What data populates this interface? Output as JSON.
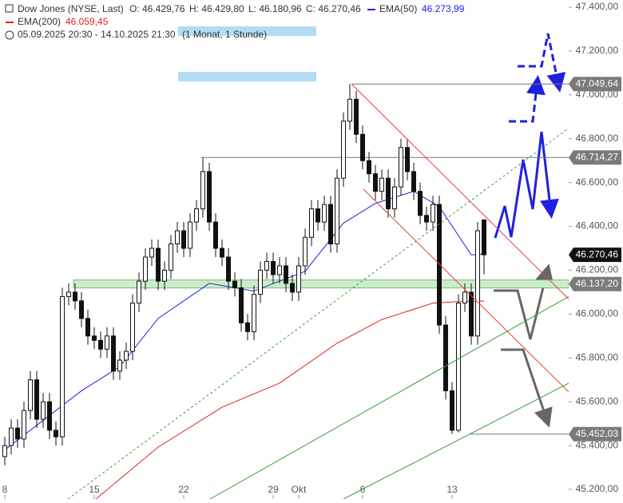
{
  "header": {
    "instrument": "Dow Jones (NYSE, Last)",
    "open": "O: 46.429,76",
    "high": "H: 46.429,80",
    "low": "L: 46.180,96",
    "close": "C: 46.270,46",
    "ema50_name": "EMA(50)",
    "ema50_value": "46.273,99",
    "ema200_name": "EMA(200)",
    "ema200_value": "46.059,45",
    "range": "05.09.2025 20:30 - 14.10.2025 21:30",
    "interval": "(1 Monat, 1 Stunde)"
  },
  "chart_data": {
    "type": "candlestick",
    "xlim": [
      -0.375,
      44.125
    ],
    "ylim": [
      45200,
      47400
    ],
    "xticks": [
      {
        "value": 0,
        "label": "8"
      },
      {
        "value": 7,
        "label": "15"
      },
      {
        "value": 14,
        "label": "22"
      },
      {
        "value": 21,
        "label": "29"
      },
      {
        "value": 23,
        "label": "Okt"
      },
      {
        "value": 28,
        "label": "6"
      },
      {
        "value": 35,
        "label": "13"
      }
    ],
    "yticks": [
      {
        "value": 45200,
        "label": "45.200,00"
      },
      {
        "value": 45400,
        "label": "45.400,00"
      },
      {
        "value": 45600,
        "label": "45.600,00"
      },
      {
        "value": 45800,
        "label": "45.800,00"
      },
      {
        "value": 46000,
        "label": "46.000,00"
      },
      {
        "value": 46200,
        "label": "46.200,00"
      },
      {
        "value": 46400,
        "label": "46.400,00"
      },
      {
        "value": 46600,
        "label": "46.600,00"
      },
      {
        "value": 46800,
        "label": "46.800,00"
      },
      {
        "value": 47000,
        "label": "47.000,00"
      },
      {
        "value": 47200,
        "label": "47.200,00"
      },
      {
        "value": 47400,
        "label": "47.400,00"
      }
    ],
    "candles": {
      "x": [
        0,
        0.5,
        1,
        1.5,
        2,
        2.5,
        3,
        3.5,
        4,
        4.5,
        5,
        5.5,
        6,
        6.5,
        7,
        7.5,
        8,
        8.5,
        9,
        9.5,
        10,
        10.5,
        11,
        11.5,
        12,
        12.5,
        13,
        13.5,
        14,
        14.5,
        15,
        15.5,
        16,
        16.5,
        17,
        17.5,
        18,
        18.5,
        19,
        19.5,
        20,
        20.5,
        21,
        21.5,
        22,
        22.5,
        23,
        23.5,
        24,
        24.5,
        25,
        25.5,
        26,
        26.5,
        27,
        27.5,
        28,
        28.5,
        29,
        29.5,
        30,
        30.5,
        31,
        31.5,
        32,
        32.5,
        33,
        33.5,
        34,
        34.5,
        35,
        35.5,
        36,
        36.5,
        37,
        37.5
      ],
      "open": [
        45350,
        45400,
        45480,
        45430,
        45560,
        45700,
        45520,
        45600,
        45470,
        45440,
        46080,
        46100,
        46060,
        45980,
        45900,
        45880,
        45840,
        45900,
        45740,
        45790,
        45830,
        46050,
        46150,
        46260,
        46300,
        46150,
        46200,
        46320,
        46380,
        46300,
        46420,
        46480,
        46650,
        46420,
        46300,
        46260,
        46150,
        46120,
        45960,
        45920,
        46090,
        46200,
        46240,
        46180,
        46220,
        46140,
        46100,
        46220,
        46350,
        46480,
        46420,
        46500,
        46320,
        46620,
        46880,
        46980,
        46820,
        46700,
        46640,
        46560,
        46620,
        46480,
        46580,
        46760,
        46650,
        46560,
        46450,
        46420,
        46500,
        45950,
        45650,
        45470,
        46050,
        46100,
        45900,
        46429.76
      ],
      "high": [
        45440,
        45520,
        45520,
        45600,
        45740,
        45740,
        45640,
        45640,
        45510,
        46120,
        46140,
        46140,
        46100,
        46020,
        45940,
        45920,
        45940,
        45940,
        45830,
        45870,
        46090,
        46190,
        46300,
        46340,
        46340,
        46240,
        46360,
        46420,
        46420,
        46460,
        46520,
        46714.27,
        46690,
        46460,
        46340,
        46300,
        46190,
        46160,
        46000,
        46130,
        46240,
        46280,
        46280,
        46260,
        46260,
        46180,
        46260,
        46390,
        46520,
        46520,
        46540,
        46540,
        46660,
        46920,
        47049.64,
        47020,
        46860,
        46740,
        46680,
        46660,
        46660,
        46620,
        46800,
        46800,
        46690,
        46600,
        46490,
        46540,
        46540,
        45990,
        45690,
        46090,
        46140,
        46140,
        46420,
        46429.8
      ],
      "low": [
        45310,
        45360,
        45390,
        45390,
        45520,
        45480,
        45480,
        45430,
        45400,
        45400,
        46040,
        46020,
        45940,
        45860,
        45840,
        45800,
        45800,
        45700,
        45700,
        45750,
        45790,
        46010,
        46110,
        46220,
        46110,
        46110,
        46160,
        46280,
        46260,
        46260,
        46380,
        46440,
        46380,
        46260,
        46220,
        46110,
        46080,
        45920,
        45880,
        45880,
        46050,
        46160,
        46140,
        46140,
        46100,
        46060,
        46060,
        46180,
        46310,
        46380,
        46380,
        46280,
        46280,
        46580,
        46840,
        46780,
        46660,
        46600,
        46520,
        46520,
        46440,
        46440,
        46540,
        46610,
        46520,
        46410,
        46380,
        46380,
        45910,
        45610,
        45452.03,
        45460,
        46010,
        45860,
        45860,
        46180.96
      ],
      "close": [
        45400,
        45480,
        45430,
        45560,
        45700,
        45520,
        45600,
        45470,
        45440,
        46080,
        46100,
        46060,
        45980,
        45900,
        45880,
        45840,
        45900,
        45740,
        45790,
        45830,
        46050,
        46150,
        46260,
        46300,
        46150,
        46200,
        46320,
        46380,
        46300,
        46420,
        46480,
        46650,
        46420,
        46300,
        46260,
        46150,
        46120,
        45960,
        45920,
        46090,
        46200,
        46240,
        46180,
        46220,
        46140,
        46100,
        46220,
        46350,
        46480,
        46420,
        46500,
        46320,
        46620,
        46880,
        46980,
        46820,
        46700,
        46640,
        46560,
        46620,
        46480,
        46580,
        46760,
        46650,
        46560,
        46450,
        46420,
        46500,
        45950,
        45650,
        45470,
        46050,
        46100,
        45900,
        46380,
        46270.46
      ]
    },
    "series": [
      {
        "name": "EMA(50)",
        "color": "#1f1fe0",
        "x": [
          0,
          6,
          9,
          12,
          16,
          19.5,
          23.5,
          26.5,
          29,
          32,
          34,
          36.5,
          37.5
        ],
        "values": [
          45380,
          45650,
          45760,
          45980,
          46140,
          46105,
          46195,
          46415,
          46505,
          46560,
          46490,
          46270,
          46273.99
        ]
      },
      {
        "name": "EMA(200)",
        "color": "#e01f1f",
        "x": [
          7,
          12,
          17,
          21.5,
          26,
          29.5,
          33.5,
          35.5,
          37.5
        ],
        "values": [
          45150,
          45393,
          45575,
          45685,
          45867,
          45975,
          46050,
          46057,
          46059.45
        ]
      }
    ],
    "levels": [
      {
        "value": 47049.64,
        "label": "47.049,64"
      },
      {
        "value": 46714.27,
        "label": "46.714,27"
      },
      {
        "value": 45452.03,
        "label": "45.452,03"
      }
    ],
    "zone": {
      "value": 46137.2,
      "label": "46.137,20"
    },
    "last_price": {
      "value": 46270.46,
      "label": "46.270,46"
    }
  }
}
